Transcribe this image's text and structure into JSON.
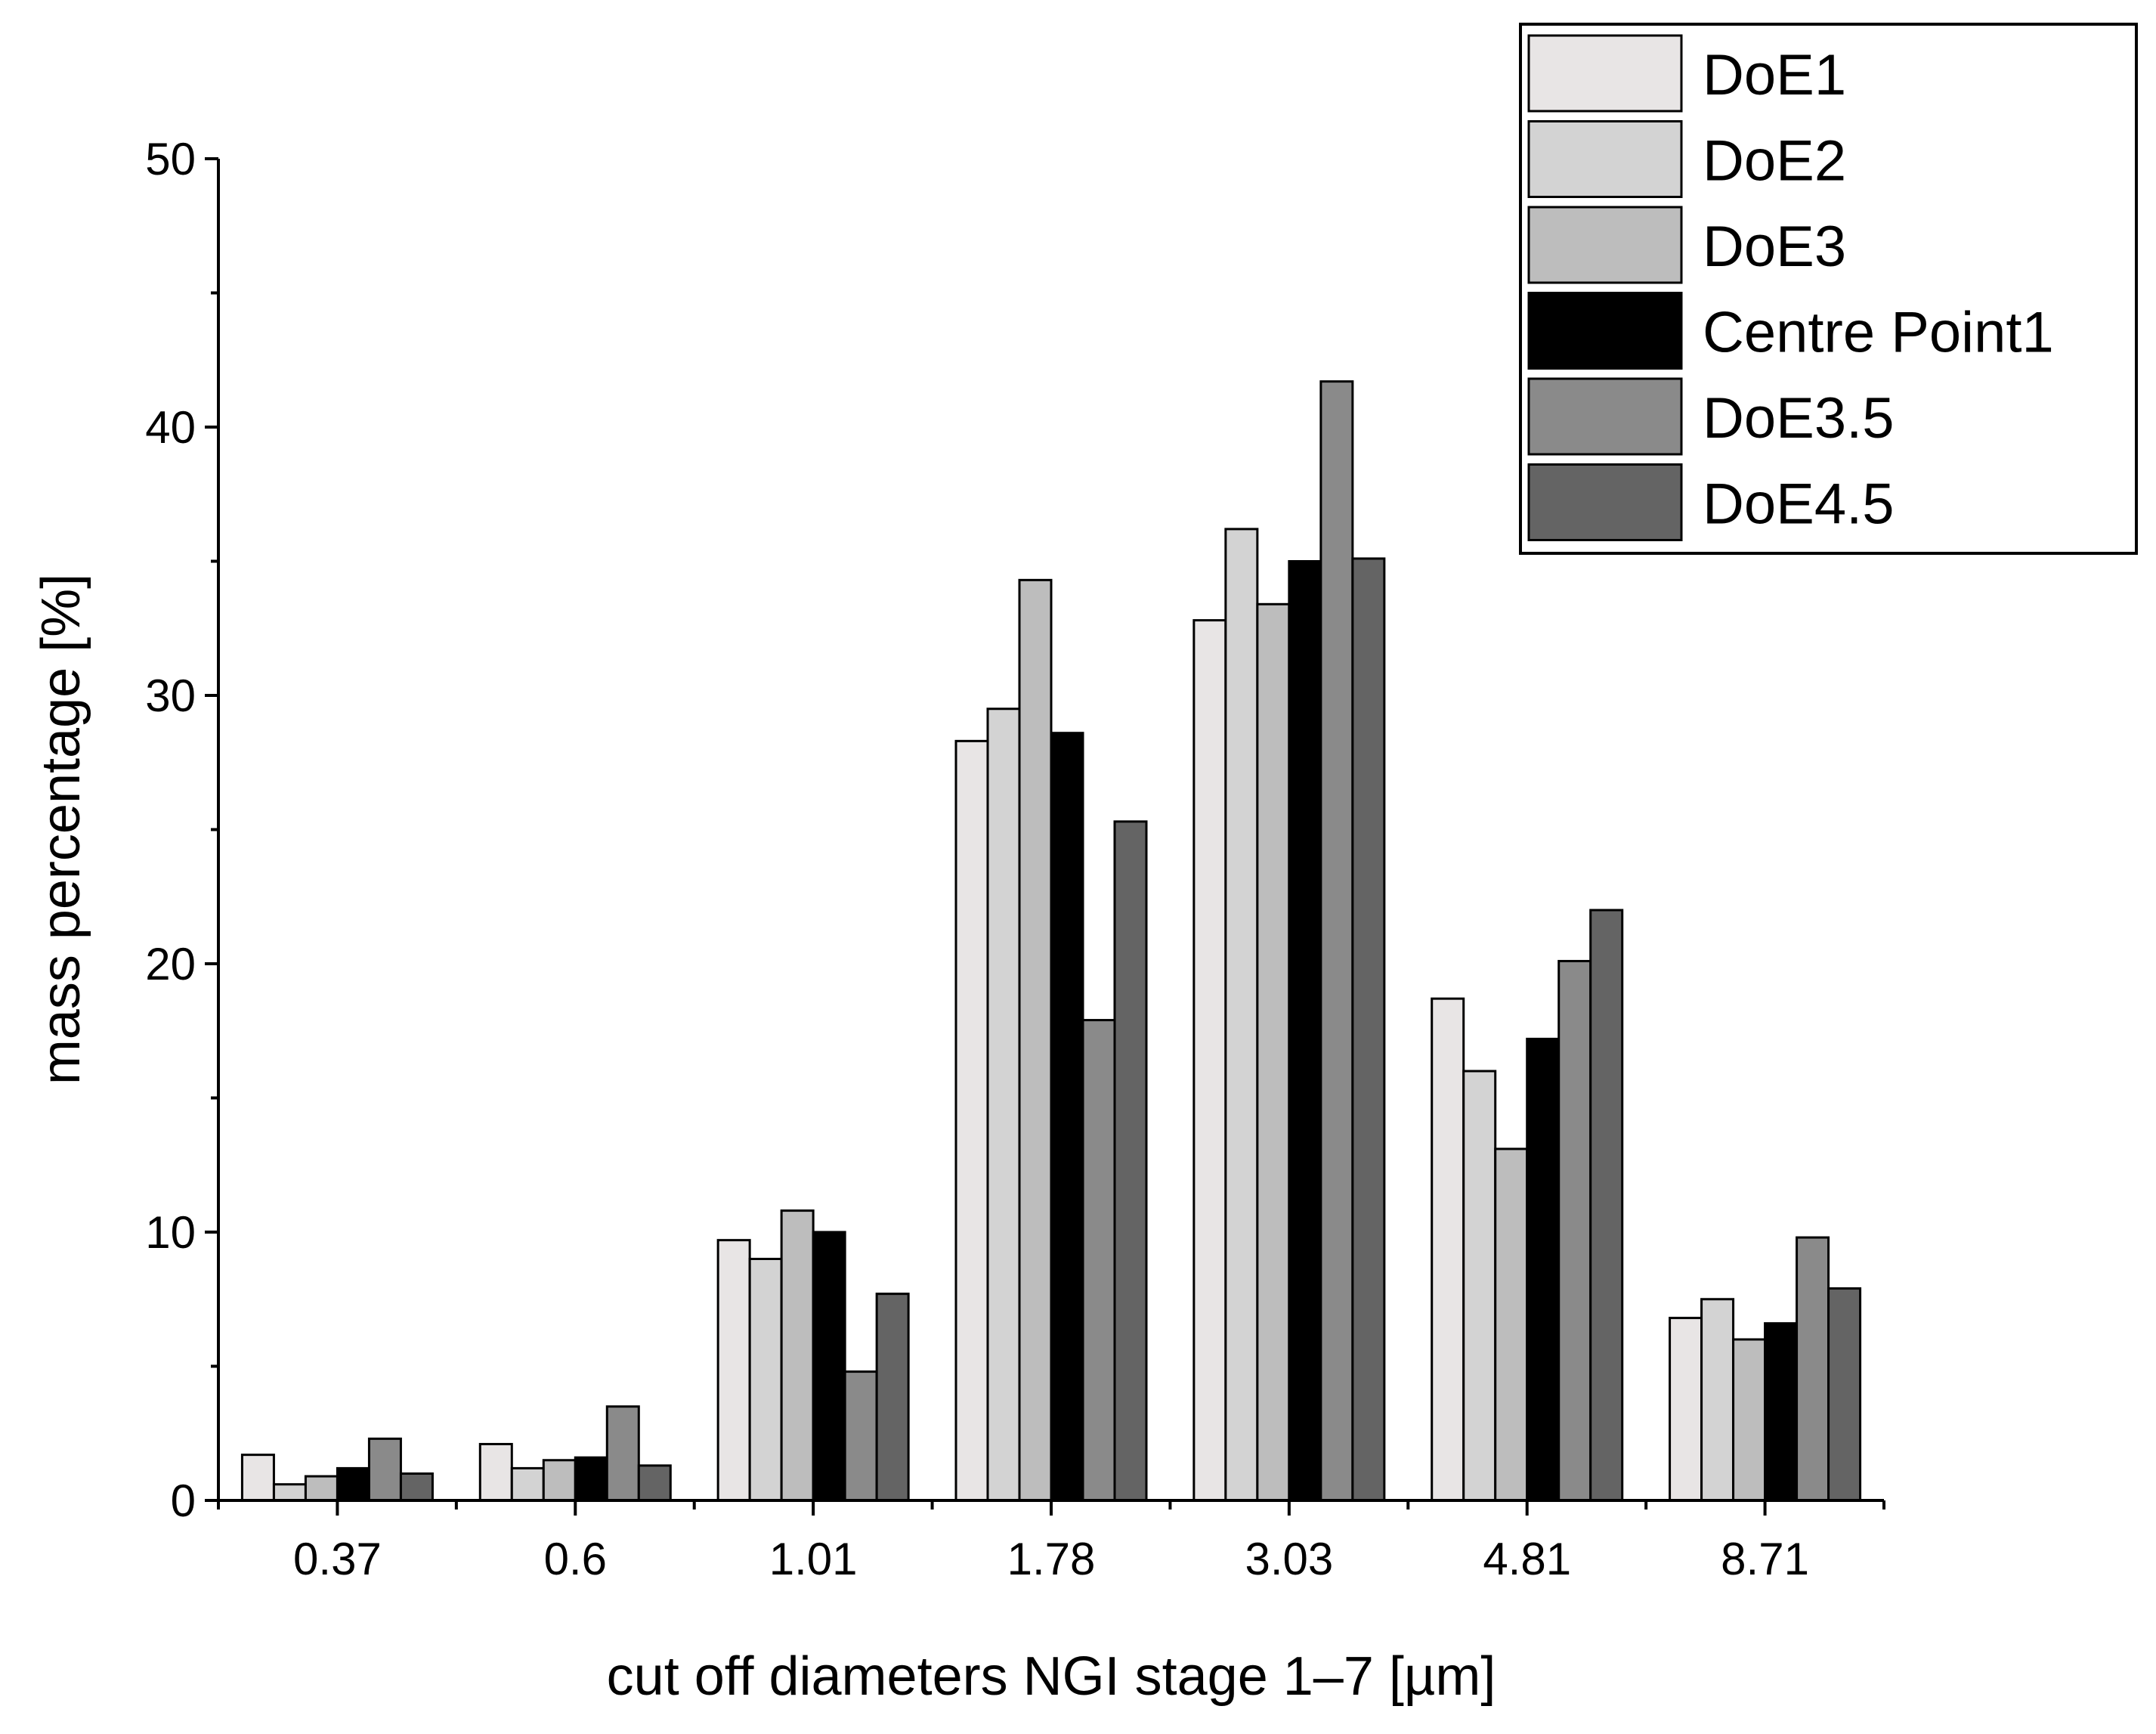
{
  "chart_data": {
    "type": "bar",
    "title": "",
    "xlabel": "cut off diameters NGI stage 1–7 [µm]",
    "ylabel": "mass percentage [%]",
    "ylim": [
      0,
      50
    ],
    "yticks": [
      "0",
      "10",
      "20",
      "30",
      "40",
      "50"
    ],
    "grid": false,
    "legend_position": "top-right",
    "categories": [
      "0.37",
      "0.6",
      "1.01",
      "1.78",
      "3.03",
      "4.81",
      "8.71"
    ],
    "series": [
      {
        "name": "DoE1",
        "color": "#e8e5e5",
        "values": [
          1.7,
          2.1,
          9.7,
          28.3,
          32.8,
          18.7,
          6.8
        ]
      },
      {
        "name": "DoE2",
        "color": "#d3d3d3",
        "values": [
          0.6,
          1.2,
          9.0,
          29.5,
          36.2,
          16.0,
          7.5
        ]
      },
      {
        "name": "DoE3",
        "color": "#bdbdbd",
        "values": [
          0.9,
          1.5,
          10.8,
          34.3,
          33.4,
          13.1,
          6.0
        ]
      },
      {
        "name": "Centre Point1",
        "color": "#000000",
        "values": [
          1.2,
          1.6,
          10.0,
          28.6,
          35.0,
          17.2,
          6.6
        ]
      },
      {
        "name": "DoE3.5",
        "color": "#8a8a8a",
        "values": [
          2.3,
          3.5,
          4.8,
          17.9,
          41.7,
          20.1,
          9.8
        ]
      },
      {
        "name": "DoE4.5",
        "color": "#646464",
        "values": [
          1.0,
          1.3,
          7.7,
          25.3,
          35.1,
          22.0,
          7.9
        ]
      }
    ]
  }
}
